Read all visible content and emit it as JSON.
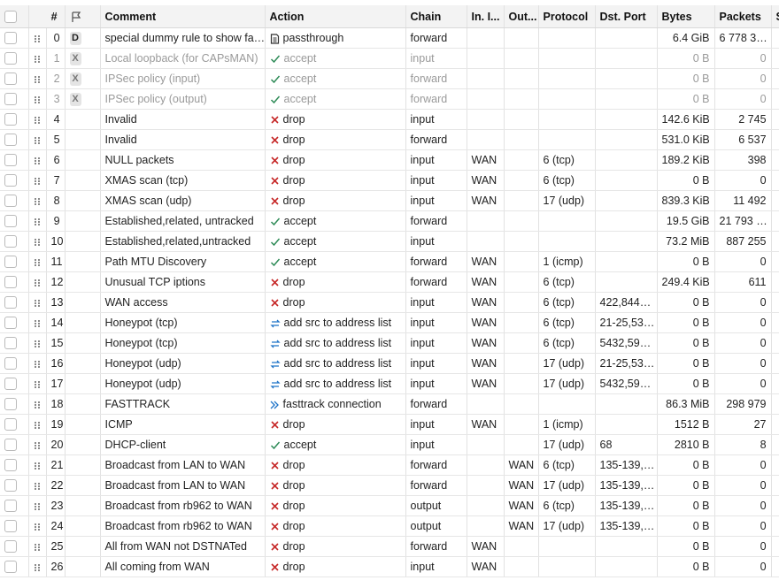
{
  "table": {
    "header": {
      "num": "#",
      "comment": "Comment",
      "action": "Action",
      "chain": "Chain",
      "in": "In. I...",
      "out": "Out...",
      "protocol": "Protocol",
      "dst_port": "Dst. Port",
      "bytes": "Bytes",
      "packets": "Packets",
      "extra": "S"
    },
    "rows": [
      {
        "num": 0,
        "flag": "D",
        "comment": "special dummy rule to show fa…",
        "action": "passthrough",
        "icon": "doc",
        "chain": "forward",
        "bytes": "6.4 GiB",
        "packets": "6 778 3…"
      },
      {
        "num": 1,
        "flag": "X",
        "disabled": true,
        "comment": "Local loopback (for CAPsMAN)",
        "action": "accept",
        "icon": "check",
        "chain": "input",
        "bytes": "0 B",
        "packets": 0
      },
      {
        "num": 2,
        "flag": "X",
        "disabled": true,
        "comment": "IPSec policy (input)",
        "action": "accept",
        "icon": "check",
        "chain": "forward",
        "bytes": "0 B",
        "packets": 0
      },
      {
        "num": 3,
        "flag": "X",
        "disabled": true,
        "comment": "IPSec policy (output)",
        "action": "accept",
        "icon": "check",
        "chain": "forward",
        "bytes": "0 B",
        "packets": 0
      },
      {
        "num": 4,
        "comment": "Invalid",
        "action": "drop",
        "icon": "cross",
        "chain": "input",
        "bytes": "142.6 KiB",
        "packets": "2 745"
      },
      {
        "num": 5,
        "comment": "Invalid",
        "action": "drop",
        "icon": "cross",
        "chain": "forward",
        "bytes": "531.0 KiB",
        "packets": "6 537"
      },
      {
        "num": 6,
        "comment": "NULL packets",
        "action": "drop",
        "icon": "cross",
        "chain": "input",
        "in": "WAN",
        "protocol": "6 (tcp)",
        "bytes": "189.2 KiB",
        "packets": 398
      },
      {
        "num": 7,
        "comment": "XMAS scan (tcp)",
        "action": "drop",
        "icon": "cross",
        "chain": "input",
        "in": "WAN",
        "protocol": "6 (tcp)",
        "bytes": "0 B",
        "packets": 0
      },
      {
        "num": 8,
        "comment": "XMAS scan (udp)",
        "action": "drop",
        "icon": "cross",
        "chain": "input",
        "in": "WAN",
        "protocol": "17 (udp)",
        "bytes": "839.3 KiB",
        "packets": "11 492"
      },
      {
        "num": 9,
        "comment": "Established,related, untracked",
        "action": "accept",
        "icon": "check",
        "chain": "forward",
        "bytes": "19.5 GiB",
        "packets": "21 793 …"
      },
      {
        "num": 10,
        "comment": "Established,related,untracked",
        "action": "accept",
        "icon": "check",
        "chain": "input",
        "bytes": "73.2 MiB",
        "packets": "887 255"
      },
      {
        "num": 11,
        "comment": "Path MTU Discovery",
        "action": "accept",
        "icon": "check",
        "chain": "forward",
        "in": "WAN",
        "protocol": "1 (icmp)",
        "bytes": "0 B",
        "packets": 0
      },
      {
        "num": 12,
        "comment": "Unusual TCP iptions",
        "action": "drop",
        "icon": "cross",
        "chain": "forward",
        "in": "WAN",
        "protocol": "6 (tcp)",
        "bytes": "249.4 KiB",
        "packets": 611
      },
      {
        "num": 13,
        "comment": "WAN access",
        "action": "drop",
        "icon": "cross",
        "chain": "input",
        "in": "WAN",
        "protocol": "6 (tcp)",
        "dst_port": "422,844…",
        "bytes": "0 B",
        "packets": 0
      },
      {
        "num": 14,
        "comment": "Honeypot (tcp)",
        "action": "add src to address list",
        "icon": "list",
        "chain": "input",
        "in": "WAN",
        "protocol": "6 (tcp)",
        "dst_port": "21-25,53…",
        "bytes": "0 B",
        "packets": 0
      },
      {
        "num": 15,
        "comment": "Honeypot (tcp)",
        "action": "add src to address list",
        "icon": "list",
        "chain": "input",
        "in": "WAN",
        "protocol": "6 (tcp)",
        "dst_port": "5432,59…",
        "bytes": "0 B",
        "packets": 0
      },
      {
        "num": 16,
        "comment": "Honeypot (udp)",
        "action": "add src to address list",
        "icon": "list",
        "chain": "input",
        "in": "WAN",
        "protocol": "17 (udp)",
        "dst_port": "21-25,53…",
        "bytes": "0 B",
        "packets": 0
      },
      {
        "num": 17,
        "comment": "Honeypot (udp)",
        "action": "add src to address list",
        "icon": "list",
        "chain": "input",
        "in": "WAN",
        "protocol": "17 (udp)",
        "dst_port": "5432,59…",
        "bytes": "0 B",
        "packets": 0
      },
      {
        "num": 18,
        "comment": "FASTTRACK",
        "action": "fasttrack connection",
        "icon": "fast",
        "chain": "forward",
        "bytes": "86.3 MiB",
        "packets": "298 979"
      },
      {
        "num": 19,
        "comment": "ICMP",
        "action": "drop",
        "icon": "cross",
        "chain": "input",
        "in": "WAN",
        "protocol": "1 (icmp)",
        "bytes": "1512 B",
        "packets": 27
      },
      {
        "num": 20,
        "comment": "DHCP-client",
        "action": "accept",
        "icon": "check",
        "chain": "input",
        "protocol": "17 (udp)",
        "dst_port": "68",
        "bytes": "2810 B",
        "packets": 8
      },
      {
        "num": 21,
        "comment": "Broadcast from LAN to WAN",
        "action": "drop",
        "icon": "cross",
        "chain": "forward",
        "out": "WAN",
        "protocol": "6 (tcp)",
        "dst_port": "135-139,…",
        "bytes": "0 B",
        "packets": 0
      },
      {
        "num": 22,
        "comment": "Broadcast from LAN to WAN",
        "action": "drop",
        "icon": "cross",
        "chain": "forward",
        "out": "WAN",
        "protocol": "17 (udp)",
        "dst_port": "135-139,…",
        "bytes": "0 B",
        "packets": 0
      },
      {
        "num": 23,
        "comment": "Broadcast from  rb962 to WAN",
        "action": "drop",
        "icon": "cross",
        "chain": "output",
        "out": "WAN",
        "protocol": "6 (tcp)",
        "dst_port": "135-139,…",
        "bytes": "0 B",
        "packets": 0
      },
      {
        "num": 24,
        "comment": "Broadcast from rb962 to WAN",
        "action": "drop",
        "icon": "cross",
        "chain": "output",
        "out": "WAN",
        "protocol": "17 (udp)",
        "dst_port": "135-139,…",
        "bytes": "0 B",
        "packets": 0
      },
      {
        "num": 25,
        "comment": "All from WAN not DSTNATed",
        "action": "drop",
        "icon": "cross",
        "chain": "forward",
        "in": "WAN",
        "bytes": "0 B",
        "packets": 0
      },
      {
        "num": 26,
        "comment": "All coming from WAN",
        "action": "drop",
        "icon": "cross",
        "chain": "input",
        "in": "WAN",
        "bytes": "0 B",
        "packets": 0
      }
    ]
  }
}
